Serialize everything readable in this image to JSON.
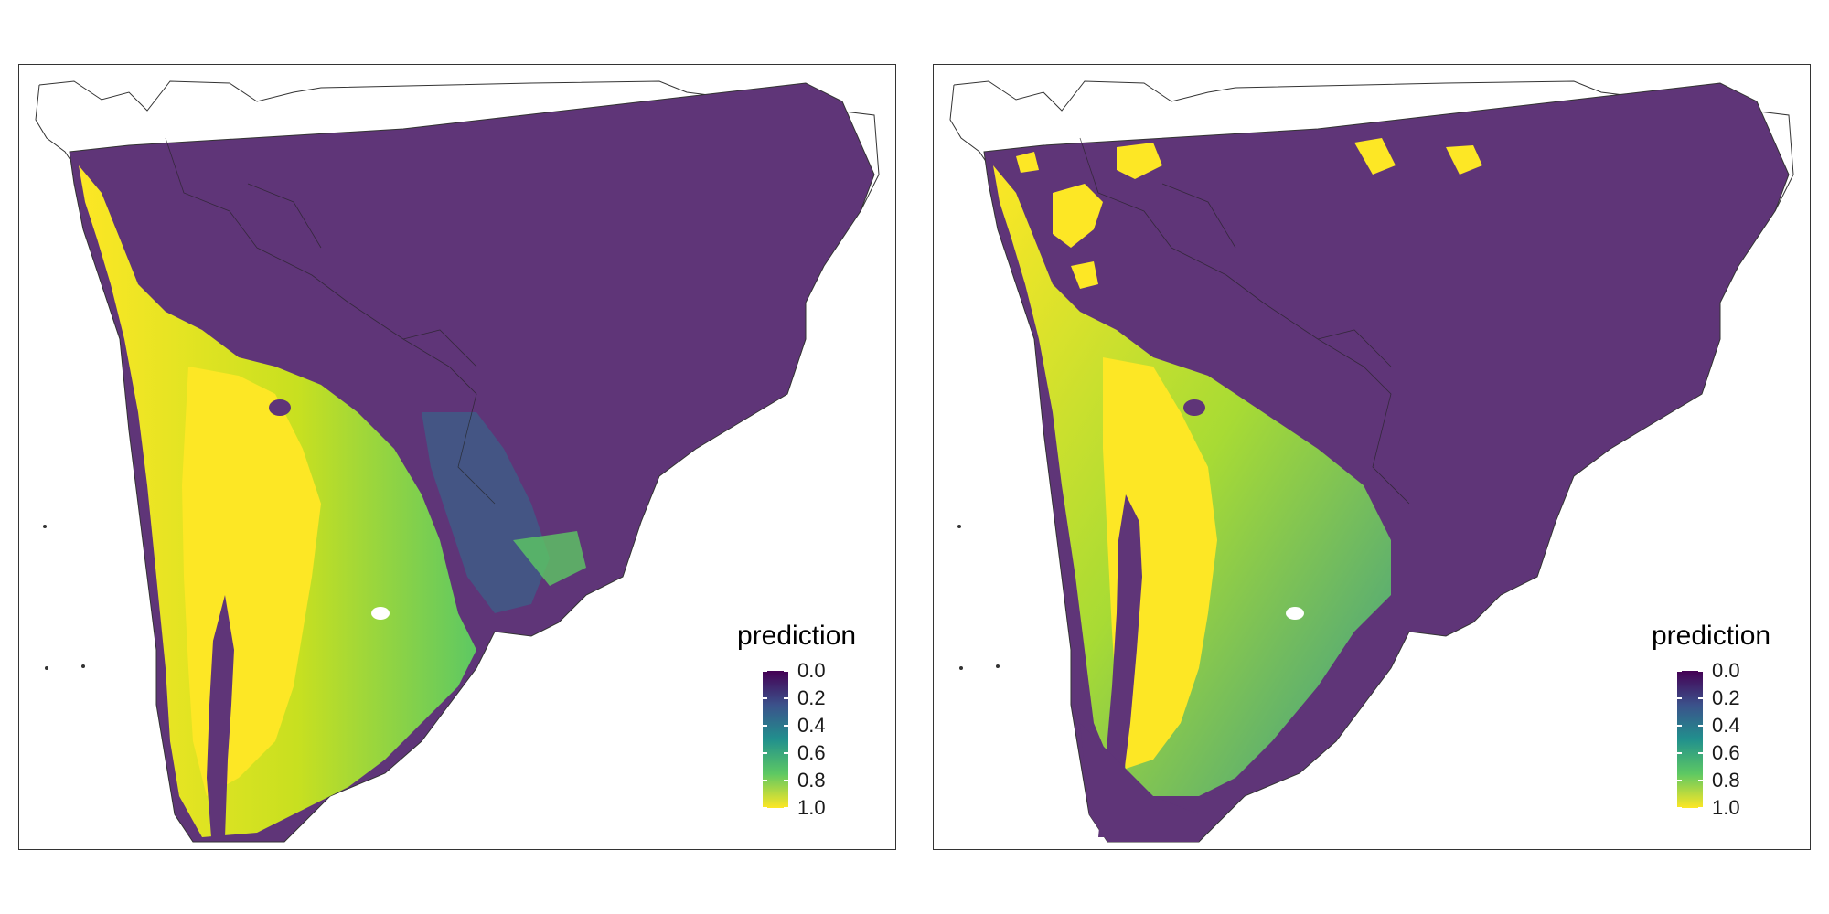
{
  "panels": [
    {
      "legend_title": "prediction",
      "ticks": [
        "0.0",
        "0.2",
        "0.4",
        "0.6",
        "0.8",
        "1.0"
      ]
    },
    {
      "legend_title": "prediction",
      "ticks": [
        "0.0",
        "0.2",
        "0.4",
        "0.6",
        "0.8",
        "1.0"
      ]
    }
  ],
  "colors": {
    "low": "#440154",
    "low_mid": "#3b528b",
    "mid": "#21908d",
    "mid_high": "#5dc863",
    "high": "#fde725",
    "map_fill": "#5f3578",
    "border": "#333333"
  }
}
